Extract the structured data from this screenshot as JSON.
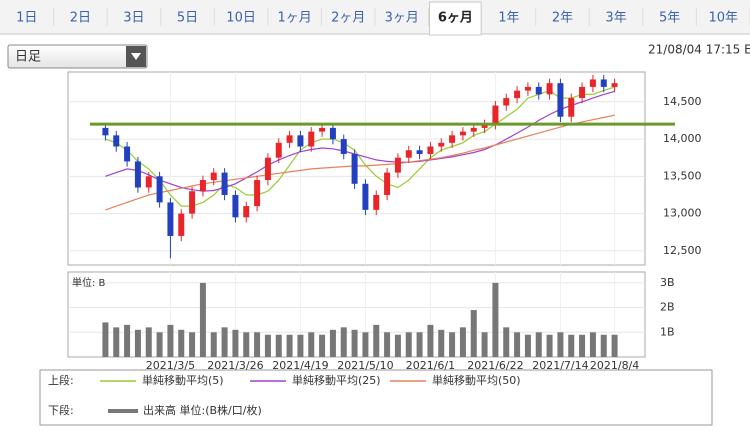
{
  "tabs": [
    "1日",
    "2日",
    "3日",
    "5日",
    "10日",
    "1ヶ月",
    "2ヶ月",
    "3ヶ月",
    "6ヶ月",
    "1年",
    "2年",
    "3年",
    "5年",
    "10年"
  ],
  "active_tab": "6ヶ月",
  "dropdown": "日足",
  "timestamp": "21/08/04 17:15 E",
  "legend": {
    "upper": "上段:",
    "lower": "下段:"
  },
  "chart_data": [
    {
      "type": "candlestick",
      "open": [
        14150,
        14050,
        13900,
        13700,
        13350,
        13500,
        13150,
        12700,
        13000,
        13300,
        13450,
        13550,
        13250,
        12950,
        13100,
        13450,
        13750,
        13950,
        14050,
        13900,
        14100,
        14150,
        14000,
        13800,
        13400,
        13050,
        13250,
        13550,
        13750,
        13850,
        13800,
        13900,
        13950,
        14050,
        14100,
        14150,
        14200,
        14450,
        14550,
        14650,
        14700,
        14600,
        14750,
        14300,
        14550,
        14700,
        14800,
        14700
      ],
      "high": [
        14210,
        14110,
        13960,
        13760,
        13560,
        13560,
        13210,
        13060,
        13360,
        13510,
        13610,
        13610,
        13310,
        13160,
        13510,
        13810,
        14010,
        14110,
        14110,
        14160,
        14210,
        14210,
        14060,
        13860,
        13460,
        13310,
        13610,
        13810,
        13910,
        13910,
        13960,
        14010,
        14110,
        14160,
        14210,
        14260,
        14510,
        14610,
        14710,
        14760,
        14760,
        14810,
        14810,
        14610,
        14760,
        14860,
        14860,
        14810
      ],
      "low": [
        13980,
        13830,
        13630,
        13280,
        13280,
        13080,
        12400,
        12630,
        12930,
        13230,
        13380,
        13180,
        12880,
        12880,
        13030,
        13380,
        13680,
        13880,
        13830,
        13830,
        14030,
        13930,
        13730,
        13330,
        12980,
        12980,
        13180,
        13480,
        13680,
        13730,
        13730,
        13830,
        13880,
        13980,
        14030,
        14080,
        14130,
        14380,
        14480,
        14580,
        14530,
        14530,
        14230,
        14230,
        14480,
        14630,
        14630,
        14630
      ],
      "close": [
        14050,
        13900,
        13700,
        13350,
        13500,
        13150,
        12700,
        13000,
        13300,
        13450,
        13550,
        13250,
        12950,
        13100,
        13450,
        13750,
        13950,
        14050,
        13900,
        14100,
        14150,
        14000,
        13800,
        13400,
        13050,
        13250,
        13550,
        13750,
        13850,
        13800,
        13900,
        13950,
        14050,
        14100,
        14150,
        14200,
        14450,
        14550,
        14650,
        14700,
        14600,
        14750,
        14300,
        14550,
        14700,
        14800,
        14700,
        14750
      ],
      "up_color": "#e8262a",
      "down_color": "#2340c0",
      "series": [
        {
          "name": "単純移動平均(5)",
          "color": "#99cc33",
          "values": [
            14000,
            13950,
            13850,
            13700,
            13600,
            13450,
            13250,
            13100,
            13100,
            13150,
            13250,
            13400,
            13350,
            13250,
            13250,
            13300,
            13450,
            13650,
            13850,
            13950,
            14000,
            14000,
            13950,
            13850,
            13650,
            13500,
            13400,
            13350,
            13450,
            13600,
            13750,
            13850,
            13900,
            13950,
            14050,
            14100,
            14200,
            14300,
            14400,
            14550,
            14600,
            14650,
            14550,
            14550,
            14600,
            14600,
            14650,
            14700
          ]
        },
        {
          "name": "単純移動平均(25)",
          "color": "#a040d0",
          "values": [
            13500,
            13550,
            13600,
            13580,
            13520,
            13450,
            13400,
            13350,
            13320,
            13300,
            13310,
            13350,
            13400,
            13480,
            13560,
            13650,
            13720,
            13780,
            13830,
            13860,
            13880,
            13870,
            13840,
            13800,
            13760,
            13720,
            13700,
            13690,
            13690,
            13700,
            13720,
            13740,
            13760,
            13790,
            13820,
            13860,
            13920,
            14000,
            14080,
            14160,
            14250,
            14330,
            14400,
            14450,
            14500,
            14550,
            14600,
            14640
          ]
        },
        {
          "name": "単純移動平均(50)",
          "color": "#e8805a",
          "values": [
            13050,
            13100,
            13150,
            13200,
            13250,
            13280,
            13310,
            13340,
            13370,
            13400,
            13420,
            13440,
            13460,
            13480,
            13500,
            13520,
            13540,
            13560,
            13580,
            13600,
            13610,
            13620,
            13630,
            13640,
            13640,
            13650,
            13660,
            13670,
            13690,
            13710,
            13730,
            13750,
            13780,
            13810,
            13850,
            13880,
            13920,
            13960,
            14000,
            14040,
            14080,
            14120,
            14160,
            14200,
            14230,
            14260,
            14290,
            14320
          ]
        }
      ],
      "hline": {
        "value": 14200,
        "color": "#6a9a2a"
      },
      "ylim": [
        12310,
        14900
      ],
      "yticks": [
        {
          "value": 12500,
          "label": "12,500"
        },
        {
          "value": 13000,
          "label": "13,000"
        },
        {
          "value": 13500,
          "label": "13,500"
        },
        {
          "value": 14000,
          "label": "14,000"
        },
        {
          "value": 14500,
          "label": "14,500"
        }
      ],
      "grid": true
    },
    {
      "type": "bar",
      "unit_label": "単位: B",
      "series_name": "出来高 単位:(B株/口/枚)",
      "color": "#777777",
      "categories": [
        null,
        null,
        null,
        null,
        null,
        null,
        "2021/3/5",
        null,
        null,
        null,
        null,
        null,
        "2021/3/26",
        null,
        null,
        null,
        null,
        null,
        "2021/4/19",
        null,
        null,
        null,
        null,
        null,
        "2021/5/10",
        null,
        null,
        null,
        null,
        null,
        "2021/6/1",
        null,
        null,
        null,
        null,
        null,
        "2021/6/22",
        null,
        null,
        null,
        null,
        null,
        "2021/7/14",
        null,
        null,
        null,
        null,
        "2021/8/4"
      ],
      "values": [
        1.4,
        1.2,
        1.3,
        1.1,
        1.2,
        1.0,
        1.3,
        1.1,
        1.0,
        3.0,
        1.0,
        1.2,
        1.1,
        1.0,
        1.0,
        0.9,
        0.9,
        0.9,
        0.9,
        1.0,
        0.9,
        1.1,
        1.2,
        1.1,
        1.0,
        1.3,
        1.0,
        0.9,
        1.0,
        1.0,
        1.3,
        1.1,
        1.0,
        1.2,
        1.9,
        1.0,
        3.0,
        1.2,
        1.0,
        0.9,
        1.0,
        0.9,
        1.0,
        0.9,
        0.9,
        1.0,
        0.9,
        0.9
      ],
      "ylim": [
        0,
        3.44
      ],
      "yticks": [
        {
          "value": 1,
          "label": "1B"
        },
        {
          "value": 2,
          "label": "2B"
        },
        {
          "value": 3,
          "label": "3B"
        }
      ],
      "grid": true
    }
  ]
}
